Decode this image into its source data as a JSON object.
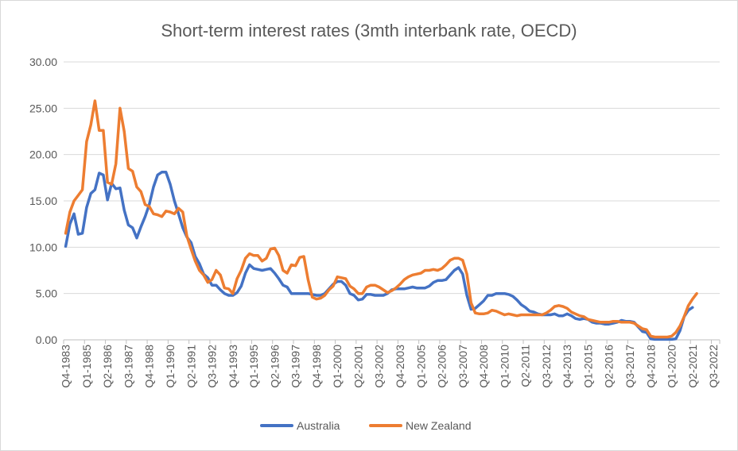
{
  "chart_data": {
    "type": "line",
    "title": "Short-term interest rates (3mth interbank rate, OECD)",
    "xlabel": "",
    "ylabel": "",
    "ylim": [
      0,
      30
    ],
    "y_ticks": [
      "0.00",
      "5.00",
      "10.00",
      "15.00",
      "20.00",
      "25.00",
      "30.00"
    ],
    "y_tick_values": [
      0,
      5,
      10,
      15,
      20,
      25,
      30
    ],
    "x_tick_labels": [
      "Q4-1983",
      "Q1-1985",
      "Q2-1986",
      "Q3-1987",
      "Q4-1988",
      "Q1-1990",
      "Q2-1991",
      "Q3-1992",
      "Q4-1993",
      "Q1-1995",
      "Q2-1996",
      "Q3-1997",
      "Q4-1998",
      "Q1-2000",
      "Q2-2001",
      "Q3-2002",
      "Q4-2003",
      "Q1-2005",
      "Q2-2006",
      "Q3-2007",
      "Q4-2008",
      "Q1-2010",
      "Q2-2011",
      "Q3-2012",
      "Q4-2013",
      "Q1-2015",
      "Q2-2016",
      "Q3-2017",
      "Q4-2018",
      "Q1-2020",
      "Q2-2021",
      "Q3-2022"
    ],
    "grid": true,
    "legend_position": "bottom",
    "x_start": "Q4-1983",
    "x_end": "Q4-2022",
    "series": [
      {
        "name": "Australia",
        "color": "#4472C4",
        "anchors": [
          [
            0,
            10.1
          ],
          [
            1,
            12.5
          ],
          [
            2,
            13.6
          ],
          [
            3,
            11.4
          ],
          [
            4,
            11.5
          ],
          [
            5,
            14.3
          ],
          [
            6,
            15.8
          ],
          [
            7,
            16.2
          ],
          [
            8,
            18.0
          ],
          [
            9,
            17.8
          ],
          [
            10,
            15.1
          ],
          [
            11,
            16.9
          ],
          [
            12,
            16.3
          ],
          [
            13,
            16.4
          ],
          [
            14,
            14.0
          ],
          [
            15,
            12.4
          ],
          [
            16,
            12.1
          ],
          [
            17,
            11.0
          ],
          [
            18,
            12.2
          ],
          [
            19,
            13.3
          ],
          [
            20,
            14.6
          ],
          [
            21,
            16.5
          ],
          [
            22,
            17.8
          ],
          [
            23,
            18.1
          ],
          [
            24,
            18.1
          ],
          [
            25,
            16.8
          ],
          [
            26,
            15.0
          ],
          [
            27,
            13.6
          ],
          [
            28,
            12.1
          ],
          [
            29,
            11.1
          ],
          [
            30,
            10.5
          ],
          [
            31,
            9.0
          ],
          [
            32,
            8.2
          ],
          [
            33,
            7.1
          ],
          [
            34,
            6.7
          ],
          [
            35,
            5.9
          ],
          [
            36,
            5.9
          ],
          [
            37,
            5.4
          ],
          [
            38,
            5.0
          ],
          [
            39,
            4.8
          ],
          [
            40,
            4.8
          ],
          [
            41,
            5.1
          ],
          [
            42,
            5.8
          ],
          [
            43,
            7.2
          ],
          [
            44,
            8.1
          ],
          [
            45,
            7.7
          ],
          [
            46,
            7.6
          ],
          [
            47,
            7.5
          ],
          [
            48,
            7.6
          ],
          [
            49,
            7.7
          ],
          [
            50,
            7.2
          ],
          [
            51,
            6.6
          ],
          [
            52,
            5.9
          ],
          [
            53,
            5.7
          ],
          [
            54,
            5.0
          ],
          [
            55,
            5.0
          ],
          [
            56,
            5.0
          ],
          [
            57,
            5.0
          ],
          [
            58,
            5.0
          ],
          [
            59,
            4.9
          ],
          [
            60,
            4.8
          ],
          [
            61,
            4.8
          ],
          [
            62,
            5.0
          ],
          [
            63,
            5.5
          ],
          [
            64,
            6.0
          ],
          [
            65,
            6.3
          ],
          [
            66,
            6.3
          ],
          [
            67,
            5.9
          ],
          [
            68,
            5.0
          ],
          [
            69,
            4.8
          ],
          [
            70,
            4.3
          ],
          [
            71,
            4.4
          ],
          [
            72,
            4.9
          ],
          [
            73,
            4.9
          ],
          [
            74,
            4.8
          ],
          [
            75,
            4.8
          ],
          [
            76,
            4.8
          ],
          [
            77,
            5.0
          ],
          [
            78,
            5.4
          ],
          [
            79,
            5.5
          ],
          [
            80,
            5.5
          ],
          [
            81,
            5.5
          ],
          [
            82,
            5.6
          ],
          [
            83,
            5.7
          ],
          [
            84,
            5.6
          ],
          [
            85,
            5.6
          ],
          [
            86,
            5.6
          ],
          [
            87,
            5.8
          ],
          [
            88,
            6.2
          ],
          [
            89,
            6.4
          ],
          [
            90,
            6.4
          ],
          [
            91,
            6.5
          ],
          [
            92,
            7.0
          ],
          [
            93,
            7.5
          ],
          [
            94,
            7.8
          ],
          [
            95,
            7.1
          ],
          [
            96,
            4.8
          ],
          [
            97,
            3.3
          ],
          [
            98,
            3.4
          ],
          [
            99,
            3.8
          ],
          [
            100,
            4.2
          ],
          [
            101,
            4.8
          ],
          [
            102,
            4.8
          ],
          [
            103,
            5.0
          ],
          [
            104,
            5.0
          ],
          [
            105,
            5.0
          ],
          [
            106,
            4.9
          ],
          [
            107,
            4.7
          ],
          [
            108,
            4.3
          ],
          [
            109,
            3.8
          ],
          [
            110,
            3.5
          ],
          [
            111,
            3.1
          ],
          [
            112,
            3.0
          ],
          [
            113,
            2.8
          ],
          [
            114,
            2.7
          ],
          [
            115,
            2.7
          ],
          [
            116,
            2.7
          ],
          [
            117,
            2.8
          ],
          [
            118,
            2.6
          ],
          [
            119,
            2.6
          ],
          [
            120,
            2.8
          ],
          [
            121,
            2.6
          ],
          [
            122,
            2.3
          ],
          [
            123,
            2.2
          ],
          [
            124,
            2.3
          ],
          [
            125,
            2.2
          ],
          [
            126,
            1.9
          ],
          [
            127,
            1.8
          ],
          [
            128,
            1.8
          ],
          [
            129,
            1.7
          ],
          [
            130,
            1.7
          ],
          [
            131,
            1.8
          ],
          [
            132,
            1.9
          ],
          [
            133,
            2.1
          ],
          [
            134,
            2.0
          ],
          [
            135,
            2.0
          ],
          [
            136,
            1.9
          ],
          [
            137,
            1.4
          ],
          [
            138,
            0.9
          ],
          [
            139,
            0.8
          ],
          [
            140,
            0.1
          ],
          [
            141,
            0.05
          ],
          [
            142,
            0.05
          ],
          [
            143,
            0.05
          ],
          [
            144,
            0.05
          ],
          [
            145,
            0.05
          ],
          [
            146,
            0.1
          ],
          [
            147,
            1.0
          ],
          [
            148,
            2.5
          ],
          [
            149,
            3.2
          ],
          [
            150,
            3.5
          ]
        ]
      },
      {
        "name": "New Zealand",
        "color": "#ED7D31",
        "anchors": [
          [
            0,
            11.5
          ],
          [
            1,
            13.8
          ],
          [
            2,
            15.0
          ],
          [
            3,
            15.6
          ],
          [
            4,
            16.2
          ],
          [
            5,
            21.4
          ],
          [
            6,
            23.2
          ],
          [
            7,
            25.8
          ],
          [
            8,
            22.6
          ],
          [
            9,
            22.6
          ],
          [
            10,
            17.0
          ],
          [
            11,
            16.8
          ],
          [
            12,
            19.0
          ],
          [
            13,
            25.0
          ],
          [
            14,
            22.5
          ],
          [
            15,
            18.5
          ],
          [
            16,
            18.2
          ],
          [
            17,
            16.5
          ],
          [
            18,
            16.0
          ],
          [
            19,
            14.6
          ],
          [
            20,
            14.4
          ],
          [
            21,
            13.6
          ],
          [
            22,
            13.5
          ],
          [
            23,
            13.3
          ],
          [
            24,
            13.9
          ],
          [
            25,
            13.8
          ],
          [
            26,
            13.6
          ],
          [
            27,
            14.2
          ],
          [
            28,
            13.8
          ],
          [
            29,
            11.2
          ],
          [
            30,
            9.8
          ],
          [
            31,
            8.5
          ],
          [
            32,
            7.5
          ],
          [
            33,
            7.0
          ],
          [
            34,
            6.2
          ],
          [
            35,
            6.5
          ],
          [
            36,
            7.5
          ],
          [
            37,
            7.0
          ],
          [
            38,
            5.6
          ],
          [
            39,
            5.5
          ],
          [
            40,
            5.0
          ],
          [
            41,
            6.6
          ],
          [
            42,
            7.5
          ],
          [
            43,
            8.8
          ],
          [
            44,
            9.3
          ],
          [
            45,
            9.1
          ],
          [
            46,
            9.1
          ],
          [
            47,
            8.5
          ],
          [
            48,
            8.8
          ],
          [
            49,
            9.8
          ],
          [
            50,
            9.9
          ],
          [
            51,
            9.1
          ],
          [
            52,
            7.5
          ],
          [
            53,
            7.2
          ],
          [
            54,
            8.1
          ],
          [
            55,
            8.0
          ],
          [
            56,
            8.9
          ],
          [
            57,
            9.0
          ],
          [
            58,
            6.5
          ],
          [
            59,
            4.6
          ],
          [
            60,
            4.4
          ],
          [
            61,
            4.5
          ],
          [
            62,
            4.8
          ],
          [
            63,
            5.4
          ],
          [
            64,
            5.8
          ],
          [
            65,
            6.8
          ],
          [
            66,
            6.7
          ],
          [
            67,
            6.6
          ],
          [
            68,
            5.8
          ],
          [
            69,
            5.5
          ],
          [
            70,
            5.0
          ],
          [
            71,
            5.0
          ],
          [
            72,
            5.7
          ],
          [
            73,
            5.9
          ],
          [
            74,
            5.9
          ],
          [
            75,
            5.7
          ],
          [
            76,
            5.4
          ],
          [
            77,
            5.1
          ],
          [
            78,
            5.3
          ],
          [
            79,
            5.6
          ],
          [
            80,
            6.0
          ],
          [
            81,
            6.5
          ],
          [
            82,
            6.8
          ],
          [
            83,
            7.0
          ],
          [
            84,
            7.1
          ],
          [
            85,
            7.2
          ],
          [
            86,
            7.5
          ],
          [
            87,
            7.5
          ],
          [
            88,
            7.6
          ],
          [
            89,
            7.5
          ],
          [
            90,
            7.7
          ],
          [
            91,
            8.1
          ],
          [
            92,
            8.6
          ],
          [
            93,
            8.8
          ],
          [
            94,
            8.8
          ],
          [
            95,
            8.6
          ],
          [
            96,
            7.1
          ],
          [
            97,
            4.0
          ],
          [
            98,
            2.9
          ],
          [
            99,
            2.8
          ],
          [
            100,
            2.8
          ],
          [
            101,
            2.9
          ],
          [
            102,
            3.2
          ],
          [
            103,
            3.1
          ],
          [
            104,
            2.9
          ],
          [
            105,
            2.7
          ],
          [
            106,
            2.8
          ],
          [
            107,
            2.7
          ],
          [
            108,
            2.6
          ],
          [
            109,
            2.7
          ],
          [
            110,
            2.7
          ],
          [
            111,
            2.7
          ],
          [
            112,
            2.7
          ],
          [
            113,
            2.7
          ],
          [
            114,
            2.7
          ],
          [
            115,
            2.9
          ],
          [
            116,
            3.2
          ],
          [
            117,
            3.6
          ],
          [
            118,
            3.7
          ],
          [
            119,
            3.6
          ],
          [
            120,
            3.4
          ],
          [
            121,
            3.0
          ],
          [
            122,
            2.8
          ],
          [
            123,
            2.6
          ],
          [
            124,
            2.5
          ],
          [
            125,
            2.2
          ],
          [
            126,
            2.1
          ],
          [
            127,
            2.0
          ],
          [
            128,
            1.9
          ],
          [
            129,
            1.9
          ],
          [
            130,
            1.9
          ],
          [
            131,
            2.0
          ],
          [
            132,
            2.0
          ],
          [
            133,
            1.9
          ],
          [
            134,
            1.9
          ],
          [
            135,
            1.9
          ],
          [
            136,
            1.8
          ],
          [
            137,
            1.5
          ],
          [
            138,
            1.2
          ],
          [
            139,
            1.1
          ],
          [
            140,
            0.4
          ],
          [
            141,
            0.3
          ],
          [
            142,
            0.3
          ],
          [
            143,
            0.3
          ],
          [
            144,
            0.3
          ],
          [
            145,
            0.4
          ],
          [
            146,
            0.8
          ],
          [
            147,
            1.5
          ],
          [
            148,
            2.5
          ],
          [
            149,
            3.7
          ],
          [
            150,
            4.4
          ],
          [
            151,
            5.0
          ]
        ]
      }
    ]
  }
}
